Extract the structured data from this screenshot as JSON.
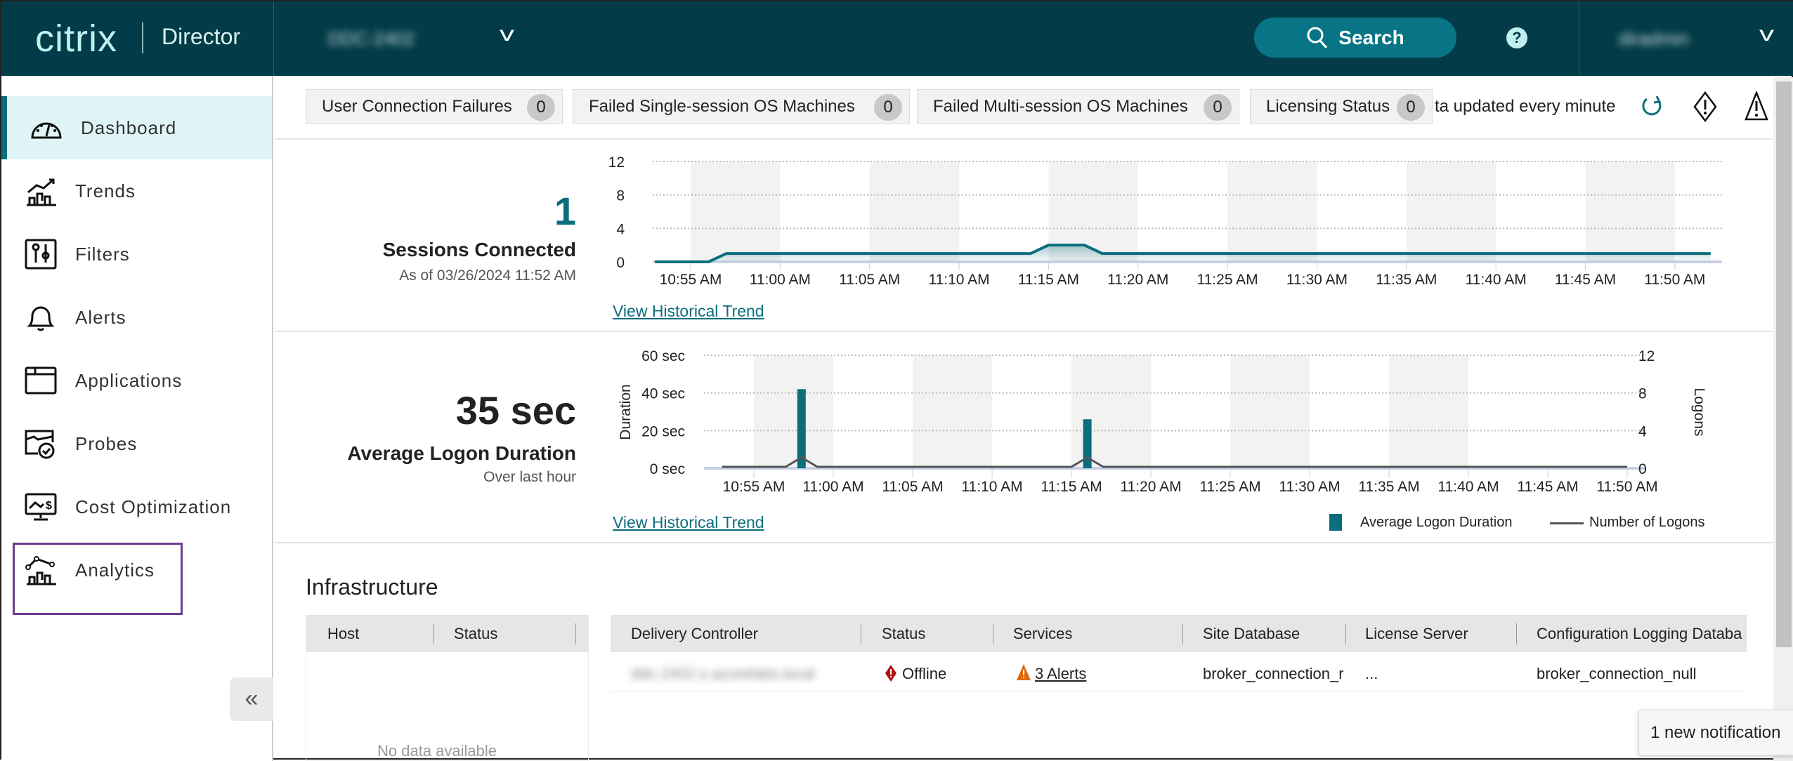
{
  "header": {
    "logo": "citrix",
    "product": "Director",
    "site": "DDC-2402",
    "search_label": "Search",
    "help": "?",
    "user": "diradmin"
  },
  "sidebar": {
    "items": [
      {
        "label": "Dashboard",
        "icon": "dashboard-gauge-icon"
      },
      {
        "label": "Trends",
        "icon": "trends-icon"
      },
      {
        "label": "Filters",
        "icon": "filters-icon"
      },
      {
        "label": "Alerts",
        "icon": "bell-icon"
      },
      {
        "label": "Applications",
        "icon": "applications-icon"
      },
      {
        "label": "Probes",
        "icon": "probes-icon"
      },
      {
        "label": "Cost Optimization",
        "icon": "cost-optimization-icon"
      },
      {
        "label": "Analytics",
        "icon": "analytics-icon"
      }
    ],
    "active": "Dashboard",
    "highlighted": "Analytics",
    "collapse": "«"
  },
  "status_bar": {
    "pills": [
      {
        "label": "User Connection Failures",
        "count": "0"
      },
      {
        "label": "Failed Single-session OS Machines",
        "count": "0"
      },
      {
        "label": "Failed Multi-session OS Machines",
        "count": "0"
      },
      {
        "label": "Licensing Status",
        "count": "0"
      }
    ],
    "update_text": "ta updated every minute"
  },
  "sessions": {
    "value": "1",
    "label": "Sessions Connected",
    "as_of": "As of 03/26/2024 11:52 AM",
    "link": "View Historical Trend"
  },
  "logon": {
    "value": "35 sec",
    "label": "Average Logon Duration",
    "sub": "Over last hour",
    "link": "View Historical Trend"
  },
  "chart_data": [
    {
      "type": "area",
      "series": [
        {
          "points": [
            [
              "10:53 AM",
              0
            ],
            [
              "10:56 AM",
              0
            ],
            [
              "10:57 AM",
              1
            ],
            [
              "11:14 AM",
              1
            ],
            [
              "11:15 AM",
              2
            ],
            [
              "11:17 AM",
              2
            ],
            [
              "11:18 AM",
              1
            ],
            [
              "11:52 AM",
              1
            ]
          ]
        }
      ],
      "ylim": [
        0,
        12
      ],
      "yticks": [
        "0",
        "4",
        "8",
        "12"
      ],
      "xticks": [
        "10:55 AM",
        "11:00 AM",
        "11:05 AM",
        "11:10 AM",
        "11:15 AM",
        "11:20 AM",
        "11:25 AM",
        "11:30 AM",
        "11:35 AM",
        "11:40 AM",
        "11:45 AM",
        "11:50 AM"
      ],
      "grid": true,
      "color": "#0b6e7d"
    },
    {
      "type": "bar+line",
      "ylabel": "Duration",
      "y2label": "Logons",
      "ylim": [
        0,
        60
      ],
      "y2lim": [
        0,
        12
      ],
      "yticks": [
        "0 sec",
        "20 sec",
        "40 sec",
        "60 sec"
      ],
      "y2ticks": [
        "0",
        "4",
        "8",
        "12"
      ],
      "xticks": [
        "10:55 AM",
        "11:00 AM",
        "11:05 AM",
        "11:10 AM",
        "11:15 AM",
        "11:20 AM",
        "11:25 AM",
        "11:30 AM",
        "11:35 AM",
        "11:40 AM",
        "11:45 AM",
        "11:50 AM"
      ],
      "series": [
        {
          "name": "Average Logon Duration",
          "type": "bar",
          "color": "#0b6e7d",
          "points": [
            [
              "10:58 AM",
              42
            ],
            [
              "11:16 AM",
              26
            ]
          ]
        },
        {
          "name": "Number of Logons",
          "type": "line",
          "color": "#555555",
          "points": [
            [
              "10:53 AM",
              0
            ],
            [
              "10:57 AM",
              0
            ],
            [
              "10:58 AM",
              1
            ],
            [
              "10:59 AM",
              0
            ],
            [
              "11:15 AM",
              0
            ],
            [
              "11:16 AM",
              1
            ],
            [
              "11:17 AM",
              0
            ],
            [
              "11:50 AM",
              0
            ]
          ]
        }
      ],
      "legend": "bottom-right",
      "grid": true
    }
  ],
  "infrastructure": {
    "title": "Infrastructure",
    "host_table": {
      "headers": [
        "Host",
        "Status"
      ],
      "empty": "No data available"
    },
    "controller_table": {
      "headers": [
        "Delivery Controller",
        "Status",
        "Services",
        "Site Database",
        "License Server",
        "Configuration Logging Databa"
      ],
      "rows": [
        {
          "controller": "ddc-2402.x.azurelabs.local",
          "status": "Offline",
          "services": "3 Alerts",
          "site_db": "broker_connection_r",
          "license": "...",
          "config_db": "broker_connection_null"
        }
      ]
    }
  },
  "notification": "1 new notification"
}
